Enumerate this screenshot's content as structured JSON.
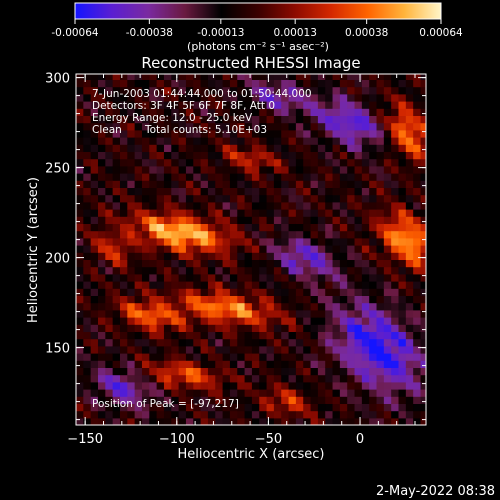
{
  "colorbar": {
    "ticks": [
      "-0.00064",
      "-0.00038",
      "-0.00013",
      "0.00013",
      "0.00038",
      "0.00064"
    ],
    "unit_label": "(photons cm⁻² s⁻¹ asec⁻²)",
    "stops": [
      "#1414ff",
      "#5a1ed2",
      "#7a2aa0",
      "#6a1a40",
      "#000000",
      "#3a0000",
      "#8c0a00",
      "#d42800",
      "#ff6400",
      "#ffb43c",
      "#fff5c8"
    ]
  },
  "chart_data": {
    "type": "heatmap",
    "title": "Reconstructed RHESSI Image",
    "xlabel": "Heliocentric X (arcsec)",
    "ylabel": "Heliocentric Y (arcsec)",
    "xlim": [
      -155,
      36
    ],
    "ylim": [
      107,
      302
    ],
    "xticks": [
      -150,
      -100,
      -50,
      0
    ],
    "yticks": [
      150,
      200,
      250,
      300
    ],
    "value_range": [
      -0.00064,
      0.00064
    ],
    "peak": [
      -97,
      217
    ],
    "hotspots": [
      {
        "x": -98,
        "y": 214,
        "sx": 25,
        "sy": 10,
        "amp": 0.00062
      },
      {
        "x": -73,
        "y": 172,
        "sx": 26,
        "sy": 9,
        "amp": 0.0005
      },
      {
        "x": -115,
        "y": 168,
        "sx": 16,
        "sy": 8,
        "amp": 0.00044
      },
      {
        "x": -95,
        "y": 135,
        "sx": 18,
        "sy": 7,
        "amp": 0.00042
      },
      {
        "x": 26,
        "y": 210,
        "sx": 14,
        "sy": 14,
        "amp": 0.00056
      },
      {
        "x": 26,
        "y": 270,
        "sx": 12,
        "sy": 14,
        "amp": 0.0005
      },
      {
        "x": -40,
        "y": 120,
        "sx": 12,
        "sy": 7,
        "amp": 0.00035
      },
      {
        "x": -60,
        "y": 255,
        "sx": 14,
        "sy": 7,
        "amp": 0.0003
      },
      {
        "x": -135,
        "y": 205,
        "sx": 10,
        "sy": 8,
        "amp": 0.00032
      }
    ],
    "coldspots": [
      {
        "x": 10,
        "y": 150,
        "sx": 22,
        "sy": 22,
        "amp": -0.00055
      },
      {
        "x": -30,
        "y": 200,
        "sx": 16,
        "sy": 10,
        "amp": -0.0004
      },
      {
        "x": -5,
        "y": 275,
        "sx": 18,
        "sy": 12,
        "amp": -0.00045
      },
      {
        "x": -130,
        "y": 128,
        "sx": 14,
        "sy": 10,
        "amp": -0.0004
      },
      {
        "x": -45,
        "y": 290,
        "sx": 16,
        "sy": 8,
        "amp": -0.00035
      }
    ]
  },
  "annotations": {
    "time_range": "7-Jun-2003 01:44:44.000 to 01:50:44.000",
    "detectors": "Detectors: 3F 4F 5F 6F 7F 8F, Att 0",
    "energy": "Energy Range: 12.0 - 25.0 keV",
    "method": "Clean",
    "counts": "Total counts: 5.10E+03",
    "peak": "Position of Peak = [-97,217]"
  },
  "footer": {
    "timestamp": "2-May-2022 08:38"
  }
}
